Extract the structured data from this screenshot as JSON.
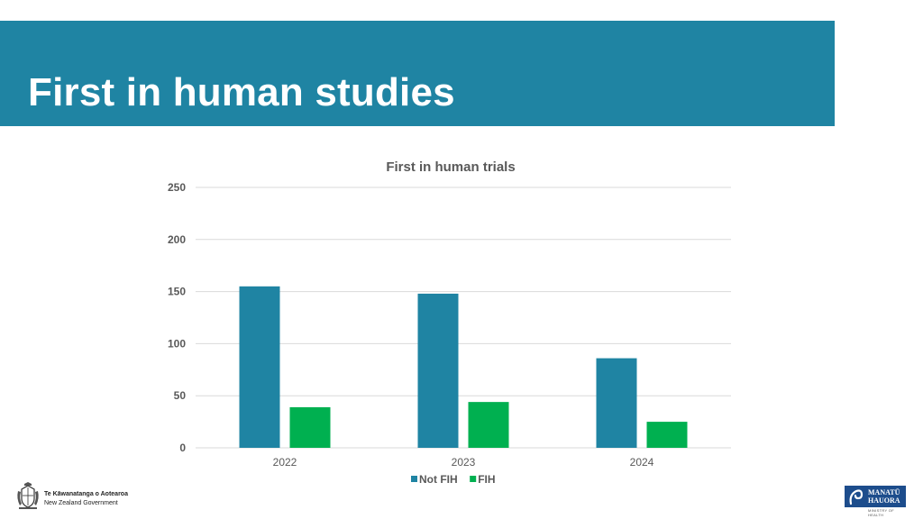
{
  "slide": {
    "title": "First in human studies"
  },
  "colors": {
    "header_band": "#1f84a3",
    "not_fih": "#1f84a3",
    "fih": "#00b050",
    "gridline": "#d9d9d9",
    "axis_text": "#595959"
  },
  "chart_data": {
    "type": "bar",
    "title": "First in human trials",
    "xlabel": "",
    "ylabel": "",
    "categories": [
      "2022",
      "2023",
      "2024"
    ],
    "series": [
      {
        "name": "Not FIH",
        "values": [
          155,
          148,
          86
        ]
      },
      {
        "name": "FIH",
        "values": [
          39,
          44,
          25
        ]
      }
    ],
    "ylim": [
      0,
      250
    ],
    "yticks": [
      0,
      50,
      100,
      150,
      200,
      250
    ],
    "grid": true,
    "legend": "bottom"
  },
  "footer": {
    "gov_maori": "Te Kāwanatanga o Aotearoa",
    "gov_english": "New Zealand Government",
    "ministry_line1": "MANATŪ",
    "ministry_line2": "HAUORA",
    "ministry_sub": "MINISTRY OF HEALTH"
  }
}
